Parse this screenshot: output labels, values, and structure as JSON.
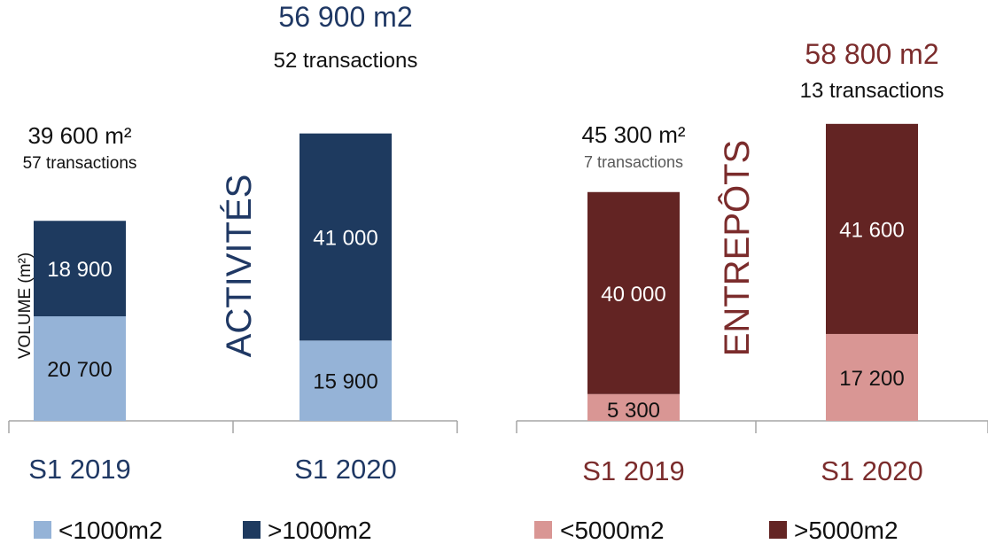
{
  "chart_data": [
    {
      "type": "bar",
      "stacked": true,
      "side_label": "ACTIVITÉS",
      "ylabel": "VOLUME (m²)",
      "categories": [
        "S1 2019",
        "S1 2020"
      ],
      "series": [
        {
          "name": "<1000m2",
          "color": "#95b3d7",
          "values": [
            20700,
            15900
          ]
        },
        {
          "name": ">1000m2",
          "color": "#1e3a5f",
          "values": [
            18900,
            41000
          ]
        }
      ],
      "bar_value_labels": [
        [
          "20 700",
          "18 900"
        ],
        [
          "15 900",
          "41 000"
        ]
      ],
      "totals": [
        {
          "volume": "39 600 m²",
          "transactions": "57 transactions"
        },
        {
          "volume": "56 900 m2",
          "transactions": "52 transactions"
        }
      ],
      "ylim": [
        0,
        70000
      ],
      "legend_position": "bottom"
    },
    {
      "type": "bar",
      "stacked": true,
      "side_label": "ENTREPÔTS",
      "categories": [
        "S1 2019",
        "S1 2020"
      ],
      "series": [
        {
          "name": "<5000m2",
          "color": "#d99694",
          "values": [
            5300,
            17200
          ]
        },
        {
          "name": ">5000m2",
          "color": "#632423",
          "values": [
            40000,
            41600
          ]
        }
      ],
      "bar_value_labels": [
        [
          "5 300",
          "40 000"
        ],
        [
          "17 200",
          "41 600"
        ]
      ],
      "totals": [
        {
          "volume": "45 300 m²",
          "transactions": "7 transactions"
        },
        {
          "volume": "58 800 m2",
          "transactions": "13 transactions"
        }
      ],
      "ylim": [
        0,
        70000
      ],
      "legend_position": "bottom"
    }
  ],
  "colors": {
    "navy_text": "#1f3864",
    "maroon_text": "#7b2c2c",
    "axis": "#a6a6a6"
  }
}
